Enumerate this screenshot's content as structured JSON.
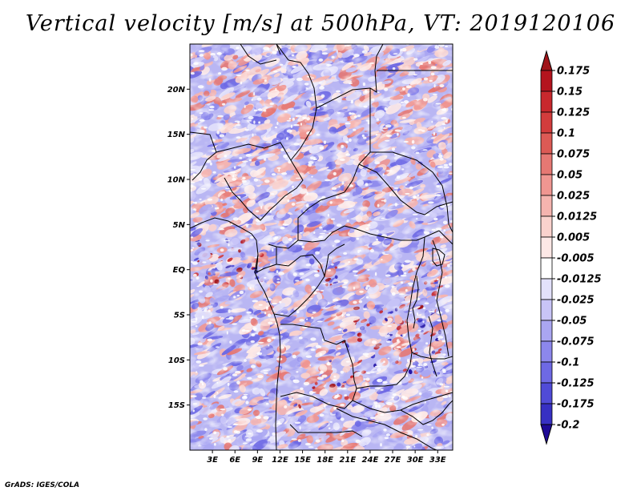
{
  "title": "Vertical velocity [m/s] at 500hPa, VT: 2019120106",
  "footer": "GrADS: IGES/COLA",
  "map": {
    "region": "Central Africa",
    "lat_range": [
      -20,
      25
    ],
    "lon_range": [
      0,
      35
    ],
    "lat_ticks": [
      {
        "value": 20,
        "label": "20N"
      },
      {
        "value": 15,
        "label": "15N"
      },
      {
        "value": 10,
        "label": "10N"
      },
      {
        "value": 5,
        "label": "5N"
      },
      {
        "value": 0,
        "label": "EQ"
      },
      {
        "value": -5,
        "label": "5S"
      },
      {
        "value": -10,
        "label": "10S"
      },
      {
        "value": -15,
        "label": "15S"
      }
    ],
    "lon_ticks": [
      {
        "value": 3,
        "label": "3E"
      },
      {
        "value": 6,
        "label": "6E"
      },
      {
        "value": 9,
        "label": "9E"
      },
      {
        "value": 12,
        "label": "12E"
      },
      {
        "value": 15,
        "label": "15E"
      },
      {
        "value": 18,
        "label": "18E"
      },
      {
        "value": 21,
        "label": "21E"
      },
      {
        "value": 24,
        "label": "24E"
      },
      {
        "value": 27,
        "label": "27E"
      },
      {
        "value": 30,
        "label": "30E"
      },
      {
        "value": 33,
        "label": "33E"
      }
    ]
  },
  "colorbar": {
    "levels": [
      {
        "label": "0.175",
        "color": "#b4141e"
      },
      {
        "label": "0.15",
        "color": "#c8282d"
      },
      {
        "label": "0.125",
        "color": "#d23c3c"
      },
      {
        "label": "0.1",
        "color": "#dc5a55"
      },
      {
        "label": "0.075",
        "color": "#e67873"
      },
      {
        "label": "0.05",
        "color": "#f09691"
      },
      {
        "label": "0.025",
        "color": "#f5b4af"
      },
      {
        "label": "0.0125",
        "color": "#fad2cd"
      },
      {
        "label": "0.005",
        "color": "#fde8e6"
      },
      {
        "label": "-0.005",
        "color": "#ffffff"
      },
      {
        "label": "-0.0125",
        "color": "#e3e1fb"
      },
      {
        "label": "-0.025",
        "color": "#c8c4f7"
      },
      {
        "label": "-0.05",
        "color": "#aaa6f2"
      },
      {
        "label": "-0.075",
        "color": "#8c87ec"
      },
      {
        "label": "-0.1",
        "color": "#6e69e4"
      },
      {
        "label": "-0.125",
        "color": "#504bd7"
      },
      {
        "label": "-0.175",
        "color": "#3730c3"
      },
      {
        "label": "-0.2",
        "color": "#2314a5"
      }
    ],
    "top_color": "#a01419",
    "bottom_color": "#1e0a96"
  }
}
